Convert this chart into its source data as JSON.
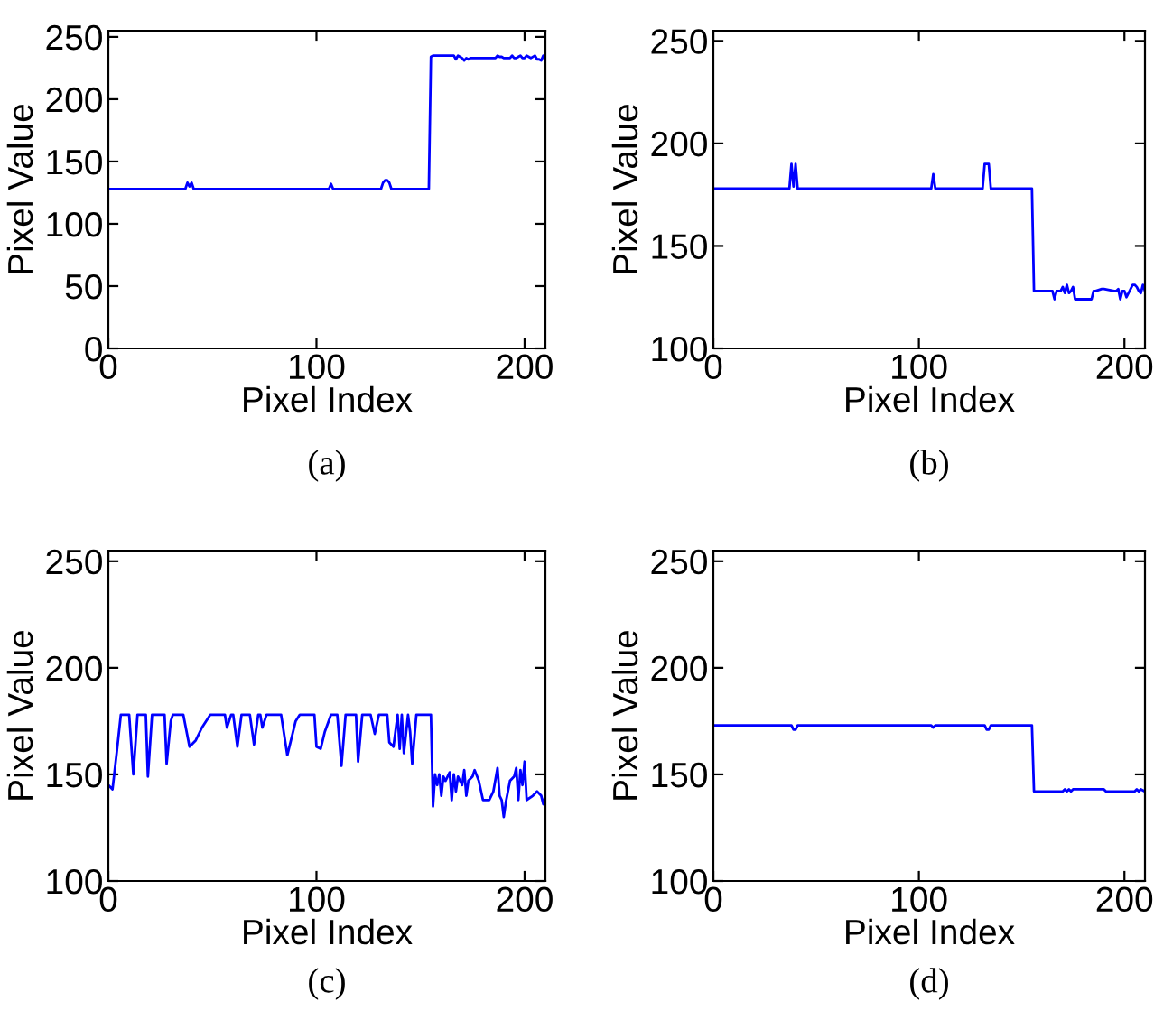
{
  "chart_data": [
    {
      "type": "line",
      "xlabel": "Pixel Index",
      "ylabel": "Pixel Value",
      "annotations": [
        "(a)"
      ],
      "xlim": [
        0,
        210
      ],
      "ylim": [
        0,
        255
      ],
      "xticks": [
        0,
        100,
        200
      ],
      "yticks": [
        0,
        50,
        100,
        150,
        200,
        250
      ],
      "grid": false,
      "legend": false,
      "series": [
        {
          "color": "#0000ff",
          "x": [
            0,
            37,
            38,
            39,
            40,
            41,
            42,
            106,
            107,
            108,
            131,
            132,
            133,
            134,
            135,
            136,
            154,
            155,
            156,
            166,
            167,
            168,
            170,
            171,
            172,
            173,
            174,
            176,
            186,
            187,
            188,
            189,
            190,
            192,
            193,
            194,
            195,
            196,
            197,
            198,
            199,
            200,
            201,
            202,
            203,
            205,
            206,
            207,
            208,
            209,
            210
          ],
          "values": [
            128,
            128,
            133,
            130,
            133,
            128,
            128,
            128,
            132,
            128,
            128,
            133,
            135,
            135,
            133,
            128,
            128,
            234,
            235,
            235,
            232,
            235,
            233,
            231,
            233,
            232,
            233,
            233,
            233,
            235,
            234,
            234,
            233,
            233,
            233,
            235,
            233,
            233,
            234,
            235,
            233,
            233,
            235,
            234,
            233,
            235,
            232,
            232,
            231,
            235,
            235
          ]
        }
      ]
    },
    {
      "type": "line",
      "xlabel": "Pixel Index",
      "ylabel": "Pixel Value",
      "annotations": [
        "(b)"
      ],
      "xlim": [
        0,
        210
      ],
      "ylim": [
        100,
        255
      ],
      "xticks": [
        0,
        100,
        200
      ],
      "yticks": [
        100,
        150,
        200,
        250
      ],
      "grid": false,
      "legend": false,
      "series": [
        {
          "color": "#0000ff",
          "x": [
            0,
            37,
            38,
            39,
            40,
            41,
            42,
            106,
            107,
            108,
            131,
            132,
            133,
            134,
            135,
            155,
            156,
            165,
            166,
            167,
            169,
            170,
            171,
            172,
            173,
            174,
            175,
            176,
            177,
            184,
            185,
            186,
            189,
            190,
            195,
            196,
            197,
            198,
            199,
            200,
            201,
            203,
            204,
            205,
            206,
            207,
            208,
            209,
            210
          ],
          "values": [
            178,
            178,
            190,
            179,
            190,
            178,
            178,
            178,
            185,
            178,
            178,
            190,
            190,
            190,
            178,
            178,
            128,
            128,
            124,
            128,
            128,
            130,
            127,
            131,
            127,
            128,
            130,
            124,
            124,
            124,
            128,
            128,
            129,
            129,
            128,
            128,
            129,
            124,
            128,
            128,
            125,
            129,
            131,
            131,
            130,
            128,
            127,
            131,
            128
          ]
        }
      ]
    },
    {
      "type": "line",
      "xlabel": "Pixel Index",
      "ylabel": "Pixel Value",
      "annotations": [
        "(c)"
      ],
      "xlim": [
        0,
        210
      ],
      "ylim": [
        100,
        255
      ],
      "xticks": [
        0,
        100,
        200
      ],
      "yticks": [
        100,
        150,
        200,
        250
      ],
      "grid": false,
      "legend": false,
      "series": [
        {
          "color": "#0000ff",
          "x": [
            0,
            2,
            4,
            6,
            10,
            12,
            14,
            18,
            19,
            21,
            27,
            28,
            30,
            31,
            36,
            39,
            42,
            45,
            49,
            56,
            57,
            59,
            60,
            62,
            64,
            68,
            70,
            72,
            73,
            74,
            76,
            83,
            86,
            90,
            92,
            99,
            100,
            102,
            104,
            107,
            110,
            112,
            114,
            119,
            120,
            122,
            126,
            128,
            130,
            134,
            135,
            137,
            139,
            140,
            141,
            142,
            144,
            145,
            146,
            148,
            155,
            156,
            157,
            158,
            159,
            160,
            161,
            162,
            164,
            165,
            166,
            167,
            168,
            170,
            171,
            172,
            173,
            175,
            176,
            178,
            180,
            183,
            185,
            187,
            188,
            189,
            190,
            191,
            193,
            195,
            196,
            197,
            198,
            199,
            200,
            201,
            204,
            206,
            208,
            209,
            210
          ],
          "values": [
            145,
            143,
            160,
            178,
            178,
            150,
            178,
            178,
            149,
            178,
            178,
            155,
            175,
            178,
            178,
            163,
            166,
            172,
            178,
            178,
            172,
            178,
            178,
            163,
            178,
            178,
            164,
            178,
            178,
            172,
            178,
            178,
            159,
            175,
            178,
            178,
            163,
            162,
            170,
            178,
            178,
            154,
            178,
            178,
            156,
            178,
            178,
            169,
            178,
            178,
            165,
            163,
            178,
            162,
            178,
            160,
            178,
            170,
            155,
            178,
            178,
            135,
            150,
            145,
            150,
            140,
            149,
            147,
            151,
            138,
            150,
            142,
            149,
            145,
            152,
            140,
            147,
            149,
            152,
            147,
            138,
            138,
            142,
            153,
            140,
            138,
            130,
            137,
            147,
            149,
            153,
            138,
            152,
            145,
            156,
            138,
            140,
            142,
            140,
            136,
            140
          ]
        }
      ]
    },
    {
      "type": "line",
      "xlabel": "Pixel Index",
      "ylabel": "Pixel Value",
      "annotations": [
        "(d)"
      ],
      "xlim": [
        0,
        210
      ],
      "ylim": [
        100,
        255
      ],
      "xticks": [
        0,
        100,
        200
      ],
      "yticks": [
        100,
        150,
        200,
        250
      ],
      "grid": false,
      "legend": false,
      "series": [
        {
          "color": "#0000ff",
          "x": [
            0,
            38,
            39,
            40,
            41,
            106,
            107,
            108,
            132,
            133,
            134,
            135,
            155,
            156,
            170,
            171,
            172,
            173,
            174,
            175,
            190,
            191,
            205,
            206,
            207,
            208,
            210
          ],
          "values": [
            173,
            173,
            171,
            171,
            173,
            173,
            172,
            173,
            173,
            171,
            171,
            173,
            173,
            142,
            142,
            143,
            142,
            143,
            142,
            143,
            143,
            142,
            142,
            143,
            142,
            143,
            142
          ]
        }
      ]
    }
  ]
}
